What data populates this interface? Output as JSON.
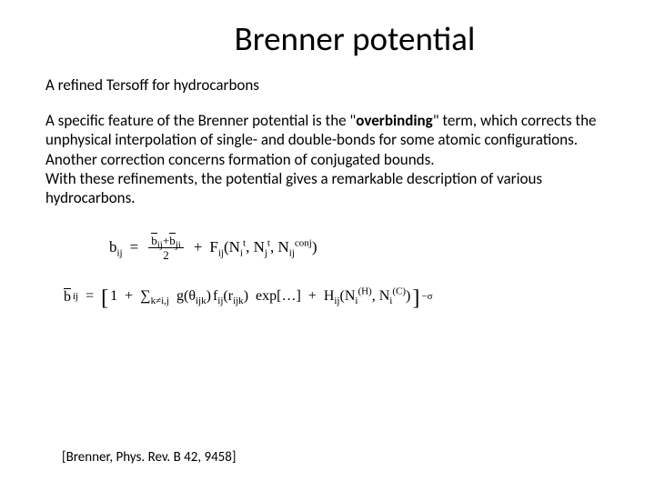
{
  "title": "Brenner potential",
  "subtitle": "A refined Tersoff for hydrocarbons",
  "p1a": "A specific feature of the Brenner potential is the \"",
  "p1b": "overbinding",
  "p1c": "\" term, which corrects the unphysical interpolation of single- and double-bonds for some atomic configurations.",
  "p2": "Another correction concerns formation of conjugated bounds.",
  "p3": "With these refinements, the potential gives a remarkable description of various hydrocarbons.",
  "citation": "[Brenner, Phys. Rev. B 42, 9458]",
  "eq": {
    "bij": "b",
    "ij": "ij",
    "eq": "=",
    "bij_bar": "b",
    "ji": "ji",
    "plus1": "+",
    "two": "2",
    "Fij": "F",
    "lpar": "(",
    "rpar": ")",
    "Ni": "N",
    "i": "i",
    "j": "j",
    "t": "t",
    "conj": "conj",
    "comma": ",",
    "one": "1",
    "sum": "∑",
    "kij": "k≠i,j",
    "g": "g",
    "theta": "θ",
    "ijk": "ijk",
    "f": "f",
    "r": "r",
    "exp": "exp",
    "dots": "[…]",
    "Hij": "H",
    "H": "(H)",
    "C": "(C)",
    "msigma": "−σ",
    "lbrack": "[",
    "rbrack": "]"
  }
}
